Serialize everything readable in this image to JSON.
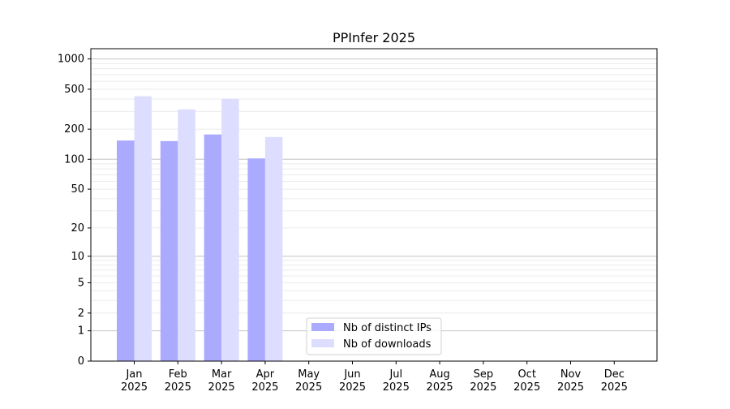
{
  "chart_data": {
    "type": "bar",
    "title": "PPInfer 2025",
    "xlabel": "",
    "ylabel": "",
    "yscale": "log(1+y)",
    "ylim": [
      0,
      1300
    ],
    "yticks": [
      0,
      1,
      2,
      5,
      10,
      20,
      50,
      100,
      200,
      500,
      1000
    ],
    "categories": [
      "Jan\n2025",
      "Feb\n2025",
      "Mar\n2025",
      "Apr\n2025",
      "May\n2025",
      "Jun\n2025",
      "Jul\n2025",
      "Aug\n2025",
      "Sep\n2025",
      "Oct\n2025",
      "Nov\n2025",
      "Dec\n2025"
    ],
    "series": [
      {
        "name": "Nb of distinct IPs",
        "color": "#aaaaff",
        "values": [
          154,
          152,
          177,
          102,
          null,
          null,
          null,
          null,
          null,
          null,
          null,
          null
        ]
      },
      {
        "name": "Nb of downloads",
        "color": "#ddddff",
        "values": [
          425,
          315,
          402,
          167,
          null,
          null,
          null,
          null,
          null,
          null,
          null,
          null
        ]
      }
    ],
    "grid": true,
    "legend": "lower-center"
  }
}
